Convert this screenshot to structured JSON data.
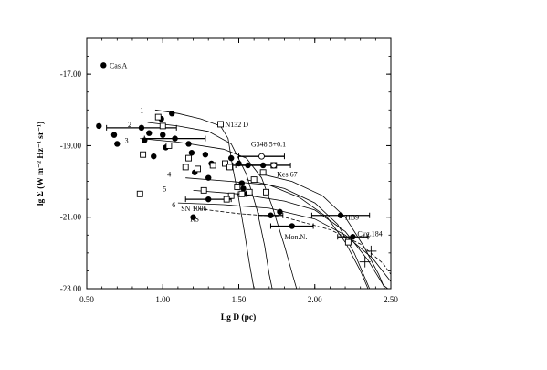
{
  "chart_data": {
    "type": "scatter",
    "title": "",
    "xlabel": "Lg D (pc)",
    "ylabel": "lg Σ (W m⁻² Hz⁻¹ sr⁻¹)",
    "xlim": [
      0.5,
      2.5
    ],
    "ylim": [
      -23.0,
      -16.0
    ],
    "x_ticks": [
      0.5,
      1.0,
      1.5,
      2.0,
      2.5
    ],
    "x_tick_labels": [
      "0.50",
      "1.00",
      "1.50",
      "2.00",
      "2.50"
    ],
    "y_ticks": [
      -23,
      -21,
      -19,
      -17
    ],
    "y_tick_labels": [
      "-23.00",
      "-21.00",
      "-19.00",
      "-17.00"
    ],
    "grid": false,
    "series": [
      {
        "marker": "filled-circle",
        "points": [
          {
            "x": 0.61,
            "y": -16.75
          },
          {
            "x": 0.58,
            "y": -18.45
          },
          {
            "x": 0.68,
            "y": -18.7
          },
          {
            "x": 0.7,
            "y": -18.95
          },
          {
            "x": 0.86,
            "y": -18.5,
            "xerr": 0.23
          },
          {
            "x": 0.88,
            "y": -18.85
          },
          {
            "x": 0.91,
            "y": -18.65
          },
          {
            "x": 0.99,
            "y": -18.25
          },
          {
            "x": 1.0,
            "y": -18.7
          },
          {
            "x": 1.02,
            "y": -19.05
          },
          {
            "x": 1.06,
            "y": -18.1
          },
          {
            "x": 1.08,
            "y": -18.8,
            "xerr": 0.2
          },
          {
            "x": 0.94,
            "y": -19.3
          },
          {
            "x": 1.17,
            "y": -18.95
          },
          {
            "x": 1.19,
            "y": -19.2
          },
          {
            "x": 1.21,
            "y": -19.75
          },
          {
            "x": 1.28,
            "y": -19.25
          },
          {
            "x": 1.3,
            "y": -19.9
          },
          {
            "x": 1.32,
            "y": -19.5
          },
          {
            "x": 1.3,
            "y": -20.5,
            "xerr": 0.15
          },
          {
            "x": 1.45,
            "y": -19.35
          },
          {
            "x": 1.5,
            "y": -19.5
          },
          {
            "x": 1.56,
            "y": -19.55,
            "xerr": 0.1
          },
          {
            "x": 1.66,
            "y": -19.55,
            "xerr": 0.18
          },
          {
            "x": 1.52,
            "y": -20.05
          },
          {
            "x": 1.53,
            "y": -20.2
          },
          {
            "x": 1.55,
            "y": -20.35
          },
          {
            "x": 1.2,
            "y": -21.0
          },
          {
            "x": 1.77,
            "y": -20.85
          },
          {
            "x": 1.71,
            "y": -20.95,
            "xerr": 0.08
          },
          {
            "x": 1.85,
            "y": -21.25,
            "xerr": 0.14
          },
          {
            "x": 2.17,
            "y": -20.95,
            "xerr": 0.19
          },
          {
            "x": 2.25,
            "y": -21.55,
            "xerr": 0.1
          }
        ]
      },
      {
        "marker": "open-square",
        "points": [
          {
            "x": 0.97,
            "y": -18.2
          },
          {
            "x": 1.0,
            "y": -18.45
          },
          {
            "x": 1.38,
            "y": -18.4
          },
          {
            "x": 0.87,
            "y": -19.25
          },
          {
            "x": 1.04,
            "y": -19.0
          },
          {
            "x": 1.17,
            "y": -19.35
          },
          {
            "x": 1.33,
            "y": -19.55
          },
          {
            "x": 1.41,
            "y": -19.5
          },
          {
            "x": 1.44,
            "y": -19.6
          },
          {
            "x": 1.15,
            "y": -19.6
          },
          {
            "x": 1.23,
            "y": -19.65
          },
          {
            "x": 1.66,
            "y": -19.75
          },
          {
            "x": 1.73,
            "y": -19.55
          },
          {
            "x": 1.6,
            "y": -19.95
          },
          {
            "x": 1.49,
            "y": -20.15
          },
          {
            "x": 1.45,
            "y": -20.4
          },
          {
            "x": 1.52,
            "y": -20.35
          },
          {
            "x": 1.57,
            "y": -20.3
          },
          {
            "x": 1.68,
            "y": -20.3
          },
          {
            "x": 0.85,
            "y": -20.35
          },
          {
            "x": 1.42,
            "y": -20.5
          },
          {
            "x": 1.27,
            "y": -20.25
          },
          {
            "x": 2.22,
            "y": -21.7
          }
        ]
      },
      {
        "marker": "open-circle",
        "points": [
          {
            "x": 1.65,
            "y": -19.3,
            "xerr": 0.15
          },
          {
            "x": 1.73,
            "y": -19.55
          }
        ]
      },
      {
        "marker": "cross",
        "points": [
          {
            "x": 2.37,
            "y": -21.95
          },
          {
            "x": 2.33,
            "y": -22.25
          }
        ]
      }
    ],
    "curves": [
      {
        "style": "solid",
        "points": [
          [
            0.95,
            -18.0
          ],
          [
            1.1,
            -18.1
          ],
          [
            1.25,
            -18.25
          ],
          [
            1.38,
            -18.45
          ],
          [
            1.43,
            -18.8
          ],
          [
            1.46,
            -19.6
          ],
          [
            1.5,
            -20.5
          ],
          [
            1.54,
            -21.5
          ],
          [
            1.57,
            -22.3
          ],
          [
            1.6,
            -23.0
          ]
        ]
      },
      {
        "style": "solid",
        "points": [
          [
            0.9,
            -18.35
          ],
          [
            1.1,
            -18.45
          ],
          [
            1.3,
            -18.6
          ],
          [
            1.45,
            -18.95
          ],
          [
            1.55,
            -19.8
          ],
          [
            1.62,
            -20.8
          ],
          [
            1.67,
            -21.8
          ],
          [
            1.7,
            -22.6
          ],
          [
            1.72,
            -23.0
          ]
        ]
      },
      {
        "style": "solid",
        "points": [
          [
            0.85,
            -18.8
          ],
          [
            1.1,
            -18.9
          ],
          [
            1.4,
            -19.1
          ],
          [
            1.55,
            -19.35
          ],
          [
            1.65,
            -19.9
          ],
          [
            1.72,
            -20.7
          ],
          [
            1.8,
            -21.8
          ],
          [
            1.86,
            -22.7
          ],
          [
            1.88,
            -23.0
          ]
        ]
      },
      {
        "style": "solid",
        "points": [
          [
            1.15,
            -19.9
          ],
          [
            1.45,
            -20.0
          ],
          [
            1.7,
            -20.1
          ],
          [
            1.9,
            -20.45
          ],
          [
            2.08,
            -21.0
          ],
          [
            2.2,
            -21.7
          ],
          [
            2.3,
            -22.5
          ],
          [
            2.35,
            -23.0
          ]
        ]
      },
      {
        "style": "solid",
        "points": [
          [
            1.2,
            -20.25
          ],
          [
            1.5,
            -20.35
          ],
          [
            1.8,
            -20.55
          ],
          [
            2.0,
            -20.8
          ],
          [
            2.2,
            -21.4
          ],
          [
            2.35,
            -22.2
          ],
          [
            2.45,
            -22.9
          ],
          [
            2.48,
            -23.0
          ]
        ]
      },
      {
        "style": "solid",
        "points": [
          [
            1.1,
            -20.6
          ],
          [
            1.4,
            -20.65
          ],
          [
            1.7,
            -20.75
          ],
          [
            2.0,
            -21.05
          ],
          [
            2.2,
            -21.5
          ],
          [
            2.38,
            -22.15
          ],
          [
            2.5,
            -22.8
          ]
        ]
      },
      {
        "style": "dashed",
        "points": [
          [
            1.2,
            -20.75
          ],
          [
            1.5,
            -20.9
          ],
          [
            1.8,
            -21.0
          ],
          [
            2.1,
            -21.35
          ],
          [
            2.3,
            -21.75
          ],
          [
            2.45,
            -22.3
          ],
          [
            2.5,
            -22.6
          ]
        ]
      },
      {
        "style": "solid",
        "points": [
          [
            1.65,
            -19.8
          ],
          [
            1.85,
            -20.0
          ],
          [
            2.05,
            -20.4
          ],
          [
            2.2,
            -21.0
          ],
          [
            2.32,
            -21.8
          ],
          [
            2.42,
            -22.6
          ],
          [
            2.46,
            -23.0
          ]
        ]
      },
      {
        "style": "solid",
        "points": [
          [
            1.55,
            -19.95
          ],
          [
            1.8,
            -20.2
          ],
          [
            2.0,
            -20.6
          ],
          [
            2.15,
            -21.2
          ],
          [
            2.26,
            -22.0
          ],
          [
            2.33,
            -22.7
          ],
          [
            2.36,
            -23.0
          ]
        ]
      }
    ],
    "annotations": [
      {
        "text": "Cas A",
        "x": 0.65,
        "y": -16.75
      },
      {
        "text": "1",
        "x": 0.85,
        "y": -18.0
      },
      {
        "text": "2",
        "x": 0.77,
        "y": -18.4
      },
      {
        "text": "3",
        "x": 0.75,
        "y": -18.85
      },
      {
        "text": "4",
        "x": 1.03,
        "y": -19.8
      },
      {
        "text": "5",
        "x": 1.0,
        "y": -20.2
      },
      {
        "text": "6",
        "x": 1.06,
        "y": -20.65
      },
      {
        "text": "N132 D",
        "x": 1.41,
        "y": -18.4
      },
      {
        "text": "G348.5+0.1",
        "x": 1.58,
        "y": -18.95
      },
      {
        "text": "Kes 67",
        "x": 1.75,
        "y": -19.8
      },
      {
        "text": "SN 1006",
        "x": 1.12,
        "y": -20.75
      },
      {
        "text": "RS",
        "x": 1.18,
        "y": -21.05
      },
      {
        "text": "HB9",
        "x": 2.2,
        "y": -21.0
      },
      {
        "text": "Mon.N.",
        "x": 1.8,
        "y": -21.55
      },
      {
        "text": "Cyg.184",
        "x": 2.28,
        "y": -21.45
      }
    ]
  }
}
